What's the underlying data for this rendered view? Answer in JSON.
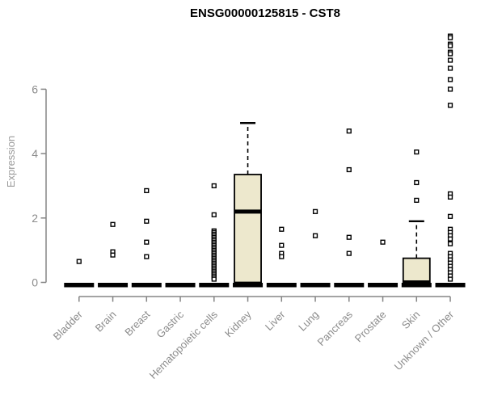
{
  "colors": {
    "background": "#ffffff",
    "box_fill": "#EDE8CD",
    "axis": "#858585",
    "tick_text": "#8c8c8c",
    "label_text": "#9a9a9a",
    "ink": "#000000",
    "title_text": "#000000"
  },
  "chart_data": {
    "type": "boxplot",
    "title": "ENSG00000125815 - CST8",
    "xlabel": "",
    "ylabel": "Expression",
    "yticks": [
      0,
      2,
      4,
      6
    ],
    "ylim": [
      -0.4,
      7.8
    ],
    "grid": false,
    "legend": null,
    "categories": [
      "Bladder",
      "Brain",
      "Breast",
      "Gastric",
      "Hematopoietic cells",
      "Kidney",
      "Liver",
      "Lung",
      "Pancreas",
      "Prostate",
      "Skin",
      "Unknown / Other"
    ],
    "boxes": [
      {
        "category": "Bladder",
        "q1": 0,
        "median": 0,
        "q3": 0,
        "whisker_low": 0,
        "whisker_high": 0,
        "outliers": [
          0.65
        ]
      },
      {
        "category": "Brain",
        "q1": 0,
        "median": 0,
        "q3": 0,
        "whisker_low": 0,
        "whisker_high": 0,
        "outliers": [
          1.8,
          0.95,
          0.85
        ]
      },
      {
        "category": "Breast",
        "q1": 0,
        "median": 0,
        "q3": 0,
        "whisker_low": 0,
        "whisker_high": 0,
        "outliers": [
          2.85,
          1.9,
          1.25,
          0.8
        ]
      },
      {
        "category": "Gastric",
        "q1": 0,
        "median": 0,
        "q3": 0,
        "whisker_low": 0,
        "whisker_high": 0,
        "outliers": []
      },
      {
        "category": "Hematopoietic cells",
        "q1": 0,
        "median": 0,
        "q3": 0,
        "whisker_low": 0,
        "whisker_high": 0,
        "outliers": [
          3.0,
          2.1,
          1.6,
          1.55,
          1.5,
          1.45,
          1.4,
          1.35,
          1.3,
          1.25,
          1.2,
          1.15,
          1.1,
          1.05,
          1.0,
          0.95,
          0.9,
          0.85,
          0.8,
          0.75,
          0.7,
          0.65,
          0.6,
          0.55,
          0.5,
          0.45,
          0.4,
          0.35,
          0.3,
          0.25,
          0.2,
          0.15,
          0.1
        ]
      },
      {
        "category": "Kidney",
        "q1": 0,
        "median": 2.2,
        "q3": 3.35,
        "whisker_low": 0,
        "whisker_high": 4.95,
        "outliers": []
      },
      {
        "category": "Liver",
        "q1": 0,
        "median": 0,
        "q3": 0,
        "whisker_low": 0,
        "whisker_high": 0,
        "outliers": [
          1.65,
          1.15,
          0.9,
          0.8
        ]
      },
      {
        "category": "Lung",
        "q1": 0,
        "median": 0,
        "q3": 0,
        "whisker_low": 0,
        "whisker_high": 0,
        "outliers": [
          2.2,
          1.45
        ]
      },
      {
        "category": "Pancreas",
        "q1": 0,
        "median": 0,
        "q3": 0,
        "whisker_low": 0,
        "whisker_high": 0,
        "outliers": [
          4.7,
          3.5,
          1.4,
          0.9
        ]
      },
      {
        "category": "Prostate",
        "q1": 0,
        "median": 0,
        "q3": 0,
        "whisker_low": 0,
        "whisker_high": 0,
        "outliers": [
          1.25
        ]
      },
      {
        "category": "Skin",
        "q1": 0,
        "median": 0,
        "q3": 0.75,
        "whisker_low": 0,
        "whisker_high": 1.9,
        "outliers": [
          4.05,
          3.1,
          2.55
        ]
      },
      {
        "category": "Unknown / Other",
        "q1": 0,
        "median": 0,
        "q3": 0,
        "whisker_low": 0,
        "whisker_high": 0,
        "outliers": [
          7.65,
          7.6,
          7.4,
          7.35,
          7.15,
          7.1,
          6.9,
          6.65,
          6.3,
          6.0,
          5.5,
          2.75,
          2.65,
          2.05,
          1.65,
          1.55,
          1.45,
          1.35,
          1.2,
          0.9,
          0.8,
          0.7,
          0.6,
          0.5,
          0.4,
          0.3,
          0.2,
          0.1
        ]
      }
    ]
  }
}
